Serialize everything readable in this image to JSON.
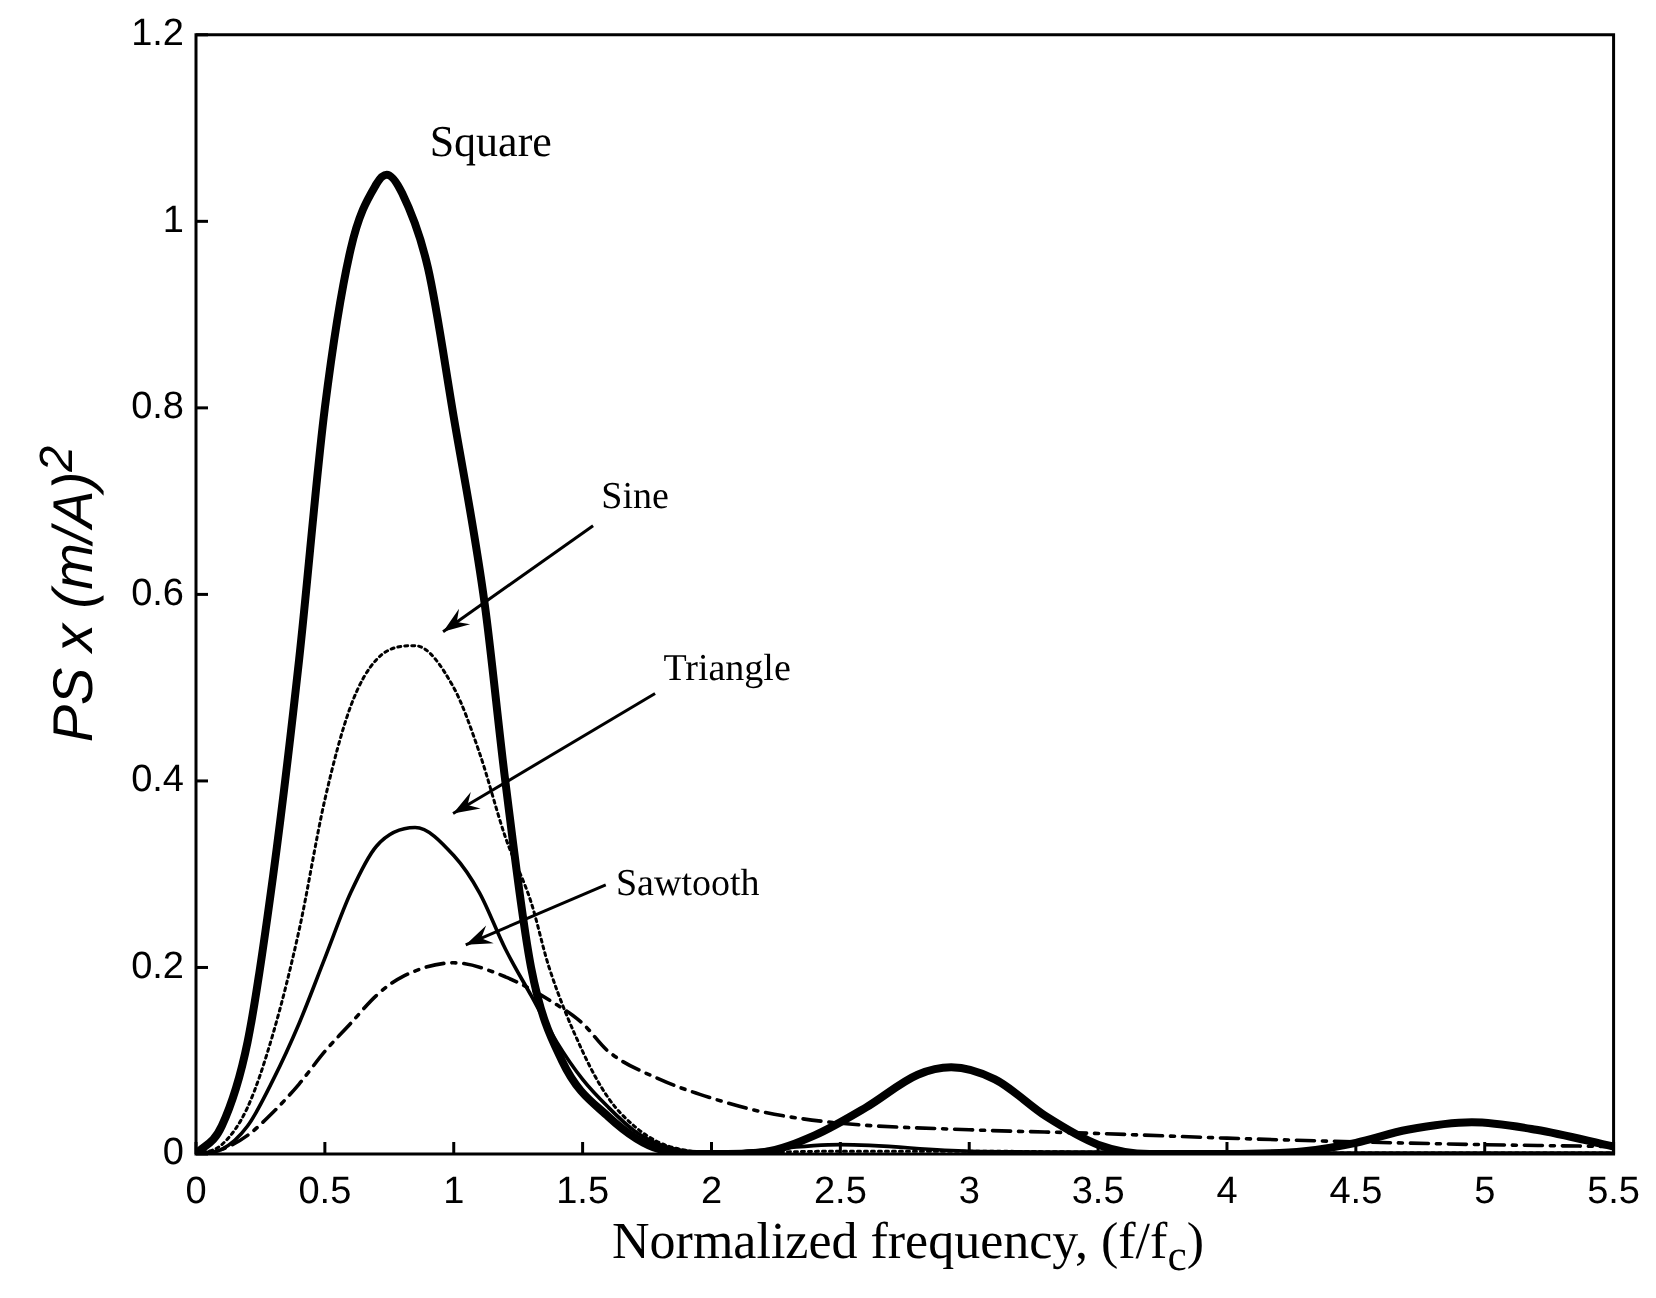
{
  "chart_data": {
    "type": "line",
    "xlabel": "Normalized frequency, (f/f$_{c}$)",
    "ylabel": "PS x (m/A)$^{2}$",
    "xlim": [
      0,
      5.5
    ],
    "xticks": [
      0,
      0.5,
      1,
      1.5,
      2,
      2.5,
      3,
      3.5,
      4,
      4.5,
      5,
      5.5
    ],
    "ylim": [
      0,
      1.2
    ],
    "yticks": [
      0,
      0.2,
      0.4,
      0.6,
      0.8,
      1,
      1.2
    ],
    "marker": "none",
    "series": [
      {
        "name": "Square",
        "color": "#000000",
        "line_style": "solid",
        "x": [
          0,
          0.1,
          0.2,
          0.3,
          0.4,
          0.5,
          0.6,
          0.7,
          0.74,
          0.8,
          0.9,
          1.0,
          1.12,
          1.2,
          1.3,
          1.42,
          1.6,
          1.8,
          2.0,
          2.2,
          2.4,
          2.6,
          2.8,
          2.93,
          3.1,
          3.3,
          3.5,
          3.7,
          4.0,
          4.3,
          4.5,
          4.7,
          4.95,
          5.2,
          5.5
        ],
        "values": [
          0,
          0.03,
          0.12,
          0.3,
          0.53,
          0.8,
          0.97,
          1.04,
          1.05,
          1.03,
          0.95,
          0.79,
          0.59,
          0.4,
          0.2,
          0.1,
          0.04,
          0.005,
          0,
          0.002,
          0.02,
          0.05,
          0.085,
          0.093,
          0.08,
          0.04,
          0.01,
          0,
          0,
          0.003,
          0.012,
          0.026,
          0.034,
          0.026,
          0.008
        ]
      },
      {
        "name": "Sine",
        "color": "#000000",
        "line_style": "dotted",
        "x": [
          0,
          0.1,
          0.2,
          0.3,
          0.4,
          0.5,
          0.6,
          0.7,
          0.85,
          1.0,
          1.1,
          1.2,
          1.3,
          1.37,
          1.5,
          1.6,
          1.7,
          1.8,
          1.9,
          2.0,
          2.5,
          3.0,
          3.5,
          4.0,
          4.5,
          5.0,
          5.5
        ],
        "values": [
          0,
          0.01,
          0.05,
          0.13,
          0.24,
          0.38,
          0.48,
          0.53,
          0.545,
          0.5,
          0.43,
          0.34,
          0.27,
          0.2,
          0.11,
          0.06,
          0.03,
          0.012,
          0.004,
          0.001,
          0.003,
          0.003,
          0.002,
          0.001,
          0.001,
          0.001,
          0.001
        ]
      },
      {
        "name": "Triangle",
        "color": "#000000",
        "line_style": "solid",
        "x": [
          0,
          0.1,
          0.2,
          0.3,
          0.4,
          0.5,
          0.6,
          0.7,
          0.85,
          1.0,
          1.1,
          1.2,
          1.3,
          1.4,
          1.5,
          1.6,
          1.7,
          1.8,
          1.9,
          2.0,
          2.5,
          3.0,
          3.5,
          4.0,
          4.5,
          5.0,
          5.5
        ],
        "values": [
          0,
          0.005,
          0.03,
          0.08,
          0.14,
          0.21,
          0.28,
          0.33,
          0.35,
          0.32,
          0.28,
          0.22,
          0.17,
          0.12,
          0.08,
          0.05,
          0.025,
          0.01,
          0.003,
          0.001,
          0.01,
          0.003,
          0.002,
          0.001,
          0.001,
          0.001,
          0.001
        ]
      },
      {
        "name": "Sawtooth",
        "color": "#000000",
        "line_style": "dashed",
        "x": [
          0,
          0.1,
          0.2,
          0.3,
          0.4,
          0.5,
          0.6,
          0.7,
          0.8,
          1.0,
          1.2,
          1.4,
          1.5,
          1.6,
          1.8,
          2.0,
          2.2,
          2.5,
          3.0,
          3.5,
          4.0,
          4.5,
          5.0,
          5.5
        ],
        "values": [
          0,
          0.005,
          0.02,
          0.045,
          0.075,
          0.11,
          0.14,
          0.17,
          0.19,
          0.205,
          0.19,
          0.16,
          0.14,
          0.11,
          0.08,
          0.06,
          0.045,
          0.033,
          0.026,
          0.022,
          0.017,
          0.013,
          0.01,
          0.008
        ]
      }
    ]
  }
}
